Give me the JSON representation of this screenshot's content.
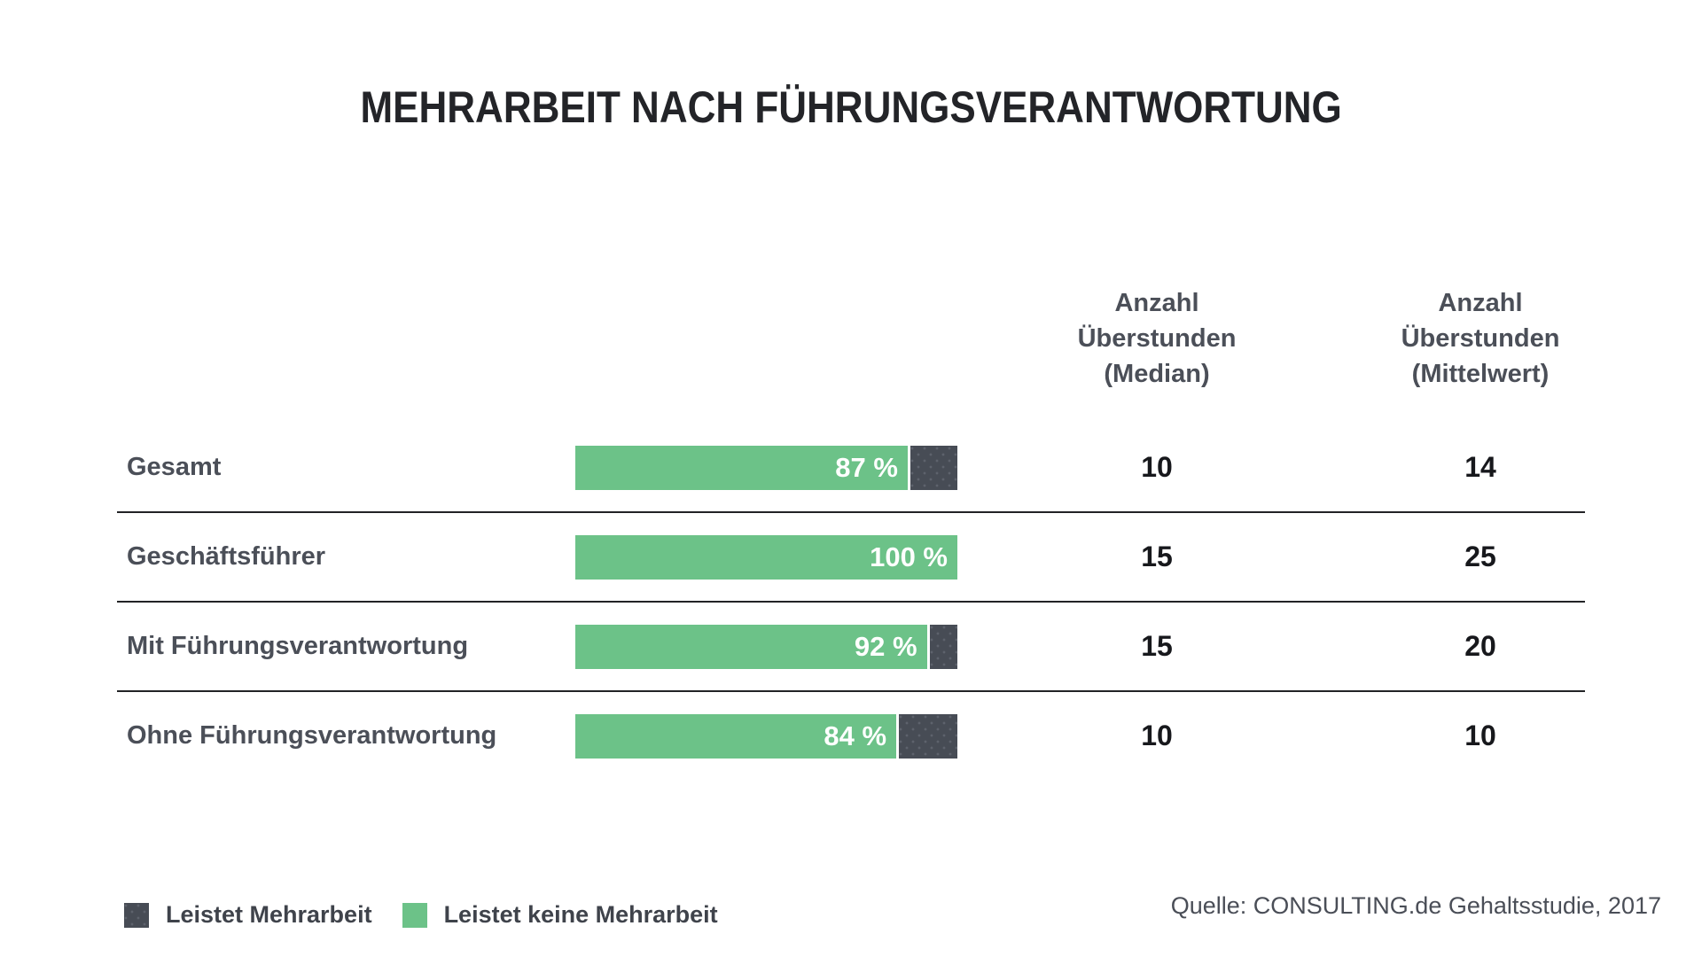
{
  "title": "MEHRARBEIT NACH FÜHRUNGSVERANTWORTUNG",
  "headers": {
    "median": "Anzahl\nÜberstunden\n(Median)",
    "mittelwert": "Anzahl\nÜberstunden\n(Mittelwert)"
  },
  "chart_data": {
    "type": "bar",
    "orientation": "horizontal",
    "stacked": true,
    "title": "MEHRARBEIT NACH FÜHRUNGSVERANTWORTUNG",
    "xlim": [
      0,
      100
    ],
    "unit": "%",
    "grid": false,
    "legend_position": "bottom-left",
    "categories": [
      "Gesamt",
      "Geschäftsführer",
      "Mit Führungsverantwortung",
      "Ohne Führungsverantwortung"
    ],
    "series": [
      {
        "name": "Leistet keine Mehrarbeit",
        "color": "#6cc288",
        "values": [
          87,
          100,
          92,
          84
        ]
      },
      {
        "name": "Leistet Mehrarbeit",
        "color": "#474c55",
        "values": [
          13,
          0,
          8,
          16
        ]
      }
    ],
    "columns": [
      {
        "header": "Anzahl Überstunden (Median)",
        "values": [
          10,
          15,
          15,
          10
        ]
      },
      {
        "header": "Anzahl Überstunden (Mittelwert)",
        "values": [
          14,
          25,
          20,
          10
        ]
      }
    ],
    "rows": [
      {
        "label": "Gesamt",
        "green_pct": 87,
        "pct_label": "87 %",
        "median": "10",
        "mittelwert": "14"
      },
      {
        "label": "Geschäftsführer",
        "green_pct": 100,
        "pct_label": "100 %",
        "median": "15",
        "mittelwert": "25"
      },
      {
        "label": "Mit Führungsverantwortung",
        "green_pct": 92,
        "pct_label": "92 %",
        "median": "15",
        "mittelwert": "20"
      },
      {
        "label": "Ohne Führungsverantwortung",
        "green_pct": 84,
        "pct_label": "84 %",
        "median": "10",
        "mittelwert": "10"
      }
    ]
  },
  "legend": {
    "items": [
      {
        "label": "Leistet Mehrarbeit",
        "color": "#474c55"
      },
      {
        "label": "Leistet keine Mehrarbeit",
        "color": "#6cc288"
      }
    ]
  },
  "source": "Quelle: CONSULTING.de Gehaltsstudie, 2017",
  "colors": {
    "green": "#6cc288",
    "dark": "#474c55",
    "dark_dot": "#5d626c",
    "text_gray": "#4b4f58",
    "text_black": "#17181c",
    "separator": "#222326"
  }
}
